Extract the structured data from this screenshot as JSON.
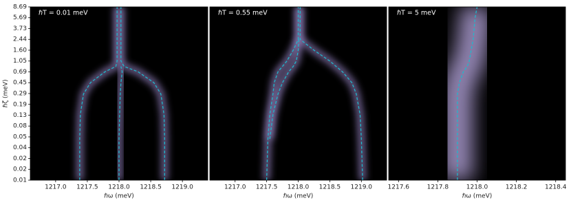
{
  "chart_data": [
    {
      "type": "line",
      "annotation": "ℏT = 0.01 meV",
      "xlabel": "ℏω (meV)",
      "ylabel": "ℏζ (meV)",
      "xlim": [
        1216.6,
        1219.4
      ],
      "xticks": [
        {
          "value": 1217.0,
          "label": "1217.0"
        },
        {
          "value": 1217.5,
          "label": "1217.5"
        },
        {
          "value": 1218.0,
          "label": "1218.0"
        },
        {
          "value": 1218.5,
          "label": "1218.5"
        },
        {
          "value": 1219.0,
          "label": "1219.0"
        }
      ],
      "ylim": [
        0.01,
        8.69
      ],
      "ylog": true,
      "yticks": [
        0.01,
        {
          "value": 0.01527,
          "label": "0.02"
        },
        {
          "value": 0.0233,
          "label": "0.02"
        },
        {
          "value": 0.03557,
          "label": "0.04"
        },
        {
          "value": 0.0543,
          "label": "0.05"
        },
        {
          "value": 0.08289,
          "label": "0.08"
        },
        {
          "value": 0.1265,
          "label": "0.13"
        },
        {
          "value": 0.1931,
          "label": "0.19"
        },
        {
          "value": 0.2948,
          "label": "0.29"
        },
        {
          "value": 0.45,
          "label": "0.45"
        },
        {
          "value": 0.687,
          "label": "0.69"
        },
        {
          "value": 1.0487,
          "label": "1.05"
        },
        {
          "value": 1.6008,
          "label": "1.60"
        },
        {
          "value": 2.4437,
          "label": "2.44"
        },
        {
          "value": 3.73,
          "label": "3.73"
        },
        {
          "value": 5.694,
          "label": "5.69"
        },
        8.69
      ],
      "y": [
        0.01,
        0.05,
        0.13,
        0.29,
        0.45,
        0.69,
        0.85,
        1.05,
        1.6,
        2.44,
        5.69,
        8.69
      ],
      "series": [
        {
          "color": "#1fb8cc",
          "x": [
            1217.38,
            1217.38,
            1217.39,
            1217.44,
            1217.55,
            1217.78,
            1217.95,
            1217.97,
            1217.97,
            1217.97,
            1217.97,
            1217.97
          ]
        },
        {
          "color": "#1fb8cc",
          "x": [
            1218.72,
            1218.72,
            1218.71,
            1218.66,
            1218.55,
            1218.3,
            1218.08,
            1218.03,
            1218.03,
            1218.03,
            1218.03,
            1218.03
          ]
        },
        {
          "color": "#1fb8cc",
          "x": [
            1218.0,
            1218.0,
            1218.01,
            1218.02,
            1218.03,
            1218.05,
            1218.03,
            null,
            null,
            null,
            null,
            null
          ]
        }
      ]
    },
    {
      "type": "line",
      "annotation": "ℏT = 0.55 meV",
      "xlabel": "ℏω (meV)",
      "xlim": [
        1216.6,
        1219.4
      ],
      "xticks": [
        {
          "value": 1217.0,
          "label": "1217.0"
        },
        {
          "value": 1217.5,
          "label": "1217.5"
        },
        {
          "value": 1218.0,
          "label": "1218.0"
        },
        {
          "value": 1218.5,
          "label": "1218.5"
        },
        {
          "value": 1219.0,
          "label": "1219.0"
        }
      ],
      "ylim": [
        0.01,
        8.69
      ],
      "ylog": true,
      "y": [
        0.01,
        0.05,
        0.13,
        0.29,
        0.45,
        0.69,
        0.85,
        1.05,
        1.6,
        2.44,
        5.69,
        8.69
      ],
      "series": [
        {
          "color": "#1fb8cc",
          "x": [
            1217.5,
            1217.52,
            1217.55,
            1217.6,
            1217.62,
            1217.68,
            1217.75,
            1217.82,
            1217.92,
            1218.0,
            1218.0,
            1218.0
          ]
        },
        {
          "color": "#1fb8cc",
          "x": [
            1219.02,
            1219.0,
            1218.98,
            1218.92,
            1218.85,
            1218.7,
            1218.6,
            1218.5,
            1218.25,
            1218.03,
            1218.03,
            1218.03
          ]
        },
        {
          "color": "#1fb8cc",
          "x": [
            null,
            1217.55,
            1217.6,
            1217.68,
            1217.75,
            1217.85,
            1217.92,
            1217.97,
            1218.0,
            1218.01,
            null,
            null
          ]
        }
      ]
    },
    {
      "type": "line",
      "annotation": "ℏT = 5 meV",
      "xlabel": "ℏω (meV)",
      "xlim": [
        1217.55,
        1218.45
      ],
      "xticks": [
        {
          "value": 1217.6,
          "label": "1217.6"
        },
        {
          "value": 1217.8,
          "label": "1217.8"
        },
        {
          "value": 1218.0,
          "label": "1218.0"
        },
        {
          "value": 1218.2,
          "label": "1218.2"
        },
        {
          "value": 1218.4,
          "label": "1218.4"
        }
      ],
      "ylim": [
        0.01,
        8.69
      ],
      "ylog": true,
      "y": [
        0.01,
        0.05,
        0.13,
        0.29,
        0.45,
        0.69,
        0.85,
        1.05,
        1.6,
        2.44,
        5.69,
        8.69
      ],
      "series": [
        {
          "color": "#1fb8cc",
          "x": [
            1217.9,
            1217.9,
            1217.9,
            1217.9,
            1217.91,
            1217.93,
            1217.95,
            1217.96,
            1217.97,
            1217.98,
            1217.99,
            1218.0
          ]
        }
      ]
    }
  ]
}
